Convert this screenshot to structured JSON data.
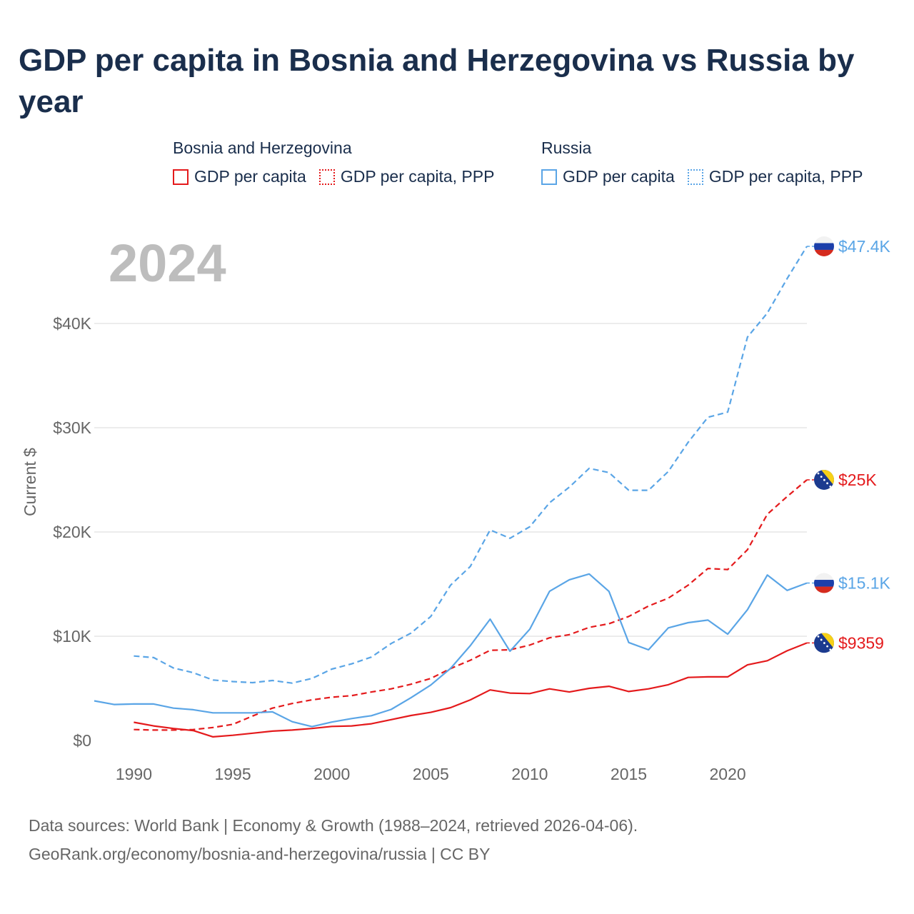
{
  "title": "GDP per capita in Bosnia and Herzegovina vs Russia by year",
  "legend": {
    "groups": [
      {
        "name": "Bosnia and Herzegovina",
        "items": [
          {
            "label": "GDP per capita",
            "style": "solid",
            "color": "#e41a1c"
          },
          {
            "label": "GDP per capita, PPP",
            "style": "dotted",
            "color": "#e41a1c"
          }
        ]
      },
      {
        "name": "Russia",
        "items": [
          {
            "label": "GDP per capita",
            "style": "solid",
            "color": "#5aa5e6"
          },
          {
            "label": "GDP per capita, PPP",
            "style": "dotted",
            "color": "#5aa5e6"
          }
        ]
      }
    ]
  },
  "chart_data": {
    "type": "line",
    "title": "GDP per capita in Bosnia and Herzegovina vs Russia by year",
    "xlabel": "",
    "ylabel": "Current $",
    "xlim": [
      1988,
      2024
    ],
    "ylim": [
      0,
      47400
    ],
    "year_label": "2024",
    "x_ticks": [
      1990,
      1995,
      2000,
      2005,
      2010,
      2015,
      2020
    ],
    "y_ticks": [
      {
        "value": 0,
        "label": "$0"
      },
      {
        "value": 10000,
        "label": "$10K"
      },
      {
        "value": 20000,
        "label": "$20K"
      },
      {
        "value": 30000,
        "label": "$30K"
      },
      {
        "value": 40000,
        "label": "$40K"
      }
    ],
    "grid": true,
    "series": [
      {
        "name": "Russia GDP per capita, PPP",
        "country": "Russia",
        "color": "#5aa5e6",
        "dashed": true,
        "end_label": "$47.4K",
        "flag": "russia",
        "x": [
          1990,
          1991,
          1992,
          1993,
          1994,
          1995,
          1996,
          1997,
          1998,
          1999,
          2000,
          2001,
          2002,
          2003,
          2004,
          2005,
          2006,
          2007,
          2008,
          2009,
          2010,
          2011,
          2012,
          2013,
          2014,
          2015,
          2016,
          2017,
          2018,
          2019,
          2020,
          2021,
          2022,
          2023,
          2024
        ],
        "values": [
          8100,
          7950,
          6950,
          6500,
          5800,
          5650,
          5550,
          5750,
          5500,
          5950,
          6850,
          7350,
          8000,
          9300,
          10300,
          11900,
          14900,
          16700,
          20200,
          19400,
          20500,
          22800,
          24300,
          26100,
          25700,
          24000,
          24000,
          25800,
          28600,
          31000,
          31500,
          38700,
          41000,
          44300,
          47400
        ]
      },
      {
        "name": "Bosnia and Herzegovina GDP per capita, PPP",
        "country": "Bosnia and Herzegovina",
        "color": "#e41a1c",
        "dashed": true,
        "end_label": "$25K",
        "flag": "bosnia",
        "x": [
          1990,
          1991,
          1992,
          1993,
          1994,
          1995,
          1996,
          1997,
          1998,
          1999,
          2000,
          2001,
          2002,
          2003,
          2004,
          2005,
          2006,
          2007,
          2008,
          2009,
          2010,
          2011,
          2012,
          2013,
          2014,
          2015,
          2016,
          2017,
          2018,
          2019,
          2020,
          2021,
          2022,
          2023,
          2024
        ],
        "values": [
          1050,
          1000,
          1000,
          1050,
          1250,
          1550,
          2350,
          3100,
          3550,
          3900,
          4150,
          4300,
          4650,
          4950,
          5400,
          5950,
          6900,
          7700,
          8650,
          8700,
          9150,
          9850,
          10150,
          10850,
          11200,
          11900,
          12900,
          13650,
          14900,
          16500,
          16400,
          18300,
          21700,
          23400,
          25000
        ]
      },
      {
        "name": "Russia GDP per capita",
        "country": "Russia",
        "color": "#5aa5e6",
        "dashed": false,
        "end_label": "$15.1K",
        "flag": "russia",
        "x": [
          1988,
          1989,
          1990,
          1991,
          1992,
          1993,
          1994,
          1995,
          1996,
          1997,
          1998,
          1999,
          2000,
          2001,
          2002,
          2003,
          2004,
          2005,
          2006,
          2007,
          2008,
          2009,
          2010,
          2011,
          2012,
          2013,
          2014,
          2015,
          2016,
          2017,
          2018,
          2019,
          2020,
          2021,
          2022,
          2023,
          2024
        ],
        "values": [
          3800,
          3450,
          3500,
          3500,
          3100,
          2950,
          2650,
          2650,
          2650,
          2750,
          1800,
          1330,
          1770,
          2100,
          2380,
          2980,
          4100,
          5320,
          6920,
          9100,
          11640,
          8560,
          10670,
          14310,
          15420,
          15970,
          14300,
          9400,
          8700,
          10800,
          11300,
          11550,
          10200,
          12550,
          15870,
          14400,
          15100
        ]
      },
      {
        "name": "Bosnia and Herzegovina GDP per capita",
        "country": "Bosnia and Herzegovina",
        "color": "#e41a1c",
        "dashed": false,
        "end_label": "$9359",
        "flag": "bosnia",
        "x": [
          1990,
          1991,
          1992,
          1993,
          1994,
          1995,
          1996,
          1997,
          1998,
          1999,
          2000,
          2001,
          2002,
          2003,
          2004,
          2005,
          2006,
          2007,
          2008,
          2009,
          2010,
          2011,
          2012,
          2013,
          2014,
          2015,
          2016,
          2017,
          2018,
          2019,
          2020,
          2021,
          2022,
          2023,
          2024
        ],
        "values": [
          1750,
          1400,
          1150,
          950,
          350,
          500,
          700,
          900,
          1000,
          1150,
          1350,
          1400,
          1600,
          2000,
          2400,
          2700,
          3150,
          3900,
          4850,
          4550,
          4500,
          4950,
          4650,
          5000,
          5200,
          4700,
          4950,
          5350,
          6050,
          6100,
          6100,
          7250,
          7650,
          8600,
          9359
        ]
      }
    ]
  },
  "footer": {
    "line1": "Data sources: World Bank | Economy & Growth (1988–2024, retrieved 2026-04-06).",
    "line2": "GeoRank.org/economy/bosnia-and-herzegovina/russia | CC BY"
  }
}
